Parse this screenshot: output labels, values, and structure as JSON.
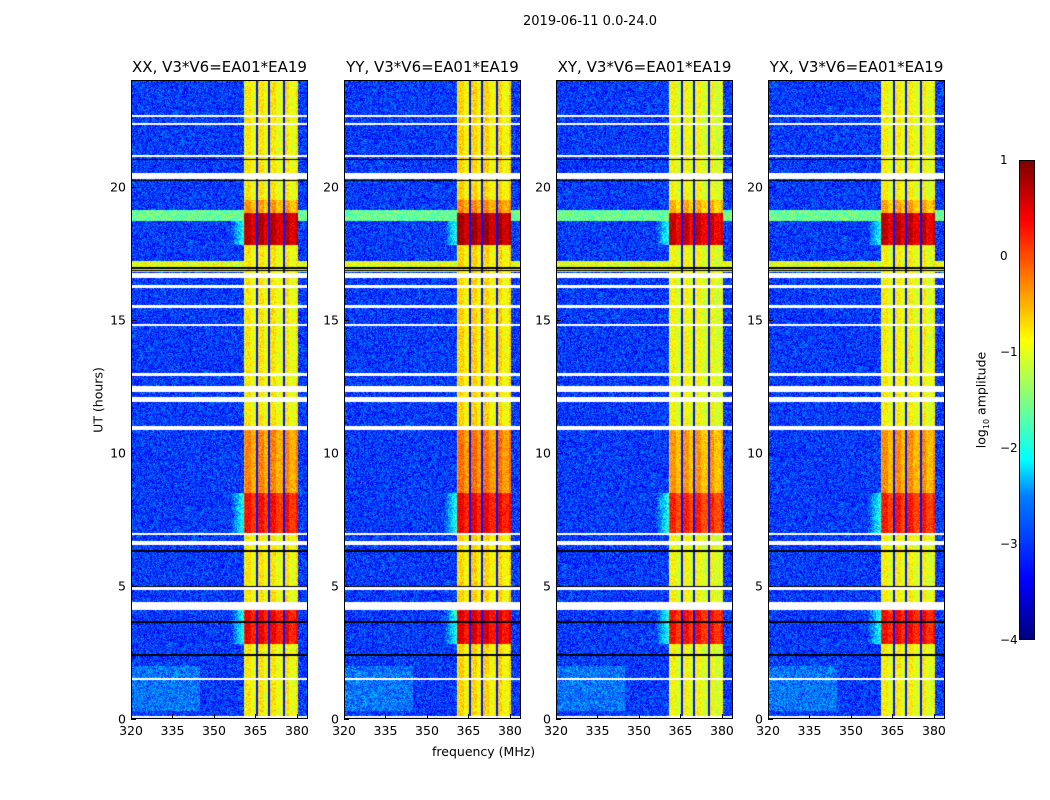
{
  "chart_data": {
    "type": "heatmap",
    "title": "2019-06-11 0.0-24.0",
    "xlabel": "frequency (MHz)",
    "ylabel": "UT (hours)",
    "xlim": [
      320,
      384
    ],
    "ylim": [
      0,
      24
    ],
    "xticks": [
      "320",
      "335",
      "350",
      "365",
      "380"
    ],
    "yticks": [
      "0",
      "5",
      "10",
      "15",
      "20"
    ],
    "panels": [
      {
        "title": "XX, V3*V6=EA01*EA19",
        "offset": 0.0
      },
      {
        "title": "YY, V3*V6=EA01*EA19",
        "offset": 0.1
      },
      {
        "title": "XY, V3*V6=EA01*EA19",
        "offset": -0.1
      },
      {
        "title": "YX, V3*V6=EA01*EA19",
        "offset": -0.05
      }
    ],
    "colorbar": {
      "label_prefix": "log",
      "label_sub": "10",
      "label_suffix": " amplitude",
      "range": [
        -4,
        1
      ],
      "ticks": [
        "1",
        "0",
        "−1",
        "−2",
        "−3",
        "−4"
      ],
      "colormap": "jet"
    },
    "background_log_amplitude": -3.1,
    "band": {
      "freq_range": [
        360.7,
        380.4
      ],
      "gap_freqs": [
        365.5,
        369.8,
        375.3
      ]
    },
    "band_levels": [
      {
        "t": [
          2.8,
          4.1
        ],
        "value": 0.3
      },
      {
        "t": [
          7.0,
          8.5
        ],
        "value": 0.2
      },
      {
        "t": [
          8.5,
          11.0
        ],
        "value": -0.4
      },
      {
        "t": [
          17.8,
          19.0
        ],
        "value": 0.6
      },
      {
        "t": [
          19.0,
          19.5
        ],
        "value": -0.5
      }
    ],
    "band_default": -0.9,
    "broadband_rows": [
      {
        "t": [
          16.8,
          17.2
        ],
        "value": -1.0
      },
      {
        "t": [
          18.7,
          19.1
        ],
        "value": -1.6
      }
    ],
    "flagged_times": [
      [
        0.05,
        0.12
      ],
      [
        1.45,
        1.55
      ],
      [
        4.1,
        4.4
      ],
      [
        4.85,
        4.95
      ],
      [
        6.55,
        6.7
      ],
      [
        6.9,
        7.0
      ],
      [
        10.85,
        11.0
      ],
      [
        11.9,
        12.1
      ],
      [
        12.3,
        12.5
      ],
      [
        12.9,
        13.0
      ],
      [
        14.75,
        14.85
      ],
      [
        15.45,
        15.55
      ],
      [
        16.2,
        16.3
      ],
      [
        16.55,
        16.75
      ],
      [
        20.3,
        20.5
      ],
      [
        21.1,
        21.2
      ],
      [
        22.3,
        22.4
      ],
      [
        22.6,
        22.7
      ]
    ],
    "black_rows": [
      2.4,
      3.65,
      4.97,
      6.3,
      10.97,
      12.05,
      16.85,
      16.95,
      20.22,
      21.02
    ]
  }
}
